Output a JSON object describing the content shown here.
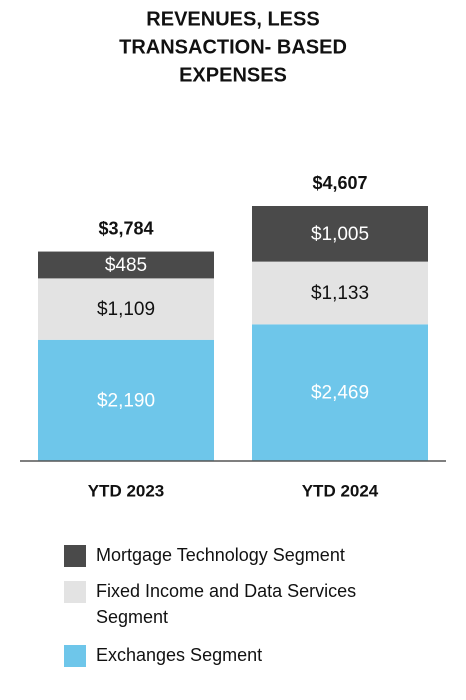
{
  "chart_data": {
    "type": "stacked_bar",
    "title": [
      "REVENUES, LESS",
      "TRANSACTION- BASED",
      "EXPENSES"
    ],
    "categories": [
      "YTD 2023",
      "YTD 2024"
    ],
    "series": [
      {
        "name": "Exchanges Segment",
        "color": "#6ec6ea",
        "values": [
          2190,
          2469
        ],
        "value_labels": [
          "$2,190",
          "$2,469"
        ]
      },
      {
        "name": "Fixed Income and Data Services Segment",
        "color": "#e3e3e3",
        "values": [
          1109,
          1133
        ],
        "value_labels": [
          "$1,109",
          "$1,133"
        ]
      },
      {
        "name": "Mortgage Technology Segment",
        "color": "#4a4a4a",
        "values": [
          485,
          1005
        ],
        "value_labels": [
          "$485",
          "$1,005"
        ]
      }
    ],
    "totals": {
      "values": [
        3784,
        4607
      ],
      "value_labels": [
        "$3,784",
        "$4,607"
      ]
    }
  }
}
